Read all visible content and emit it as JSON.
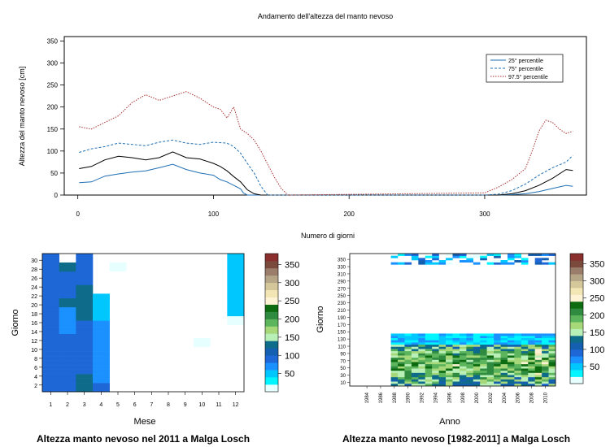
{
  "colors": {
    "p25": "#1f6fb4",
    "p75": "#1f6fb4",
    "p975": "#a83232",
    "median": "#000000",
    "heat_scale": [
      "#e6ffff",
      "#00f5ff",
      "#00c8ff",
      "#1b90ff",
      "#1e67d6",
      "#145fb0",
      "#0e6c8a",
      "#b8f0b8",
      "#a6d87a",
      "#5cb45c",
      "#2e8b3f",
      "#0d6b10",
      "#fff3d6",
      "#f2e6b5",
      "#d4c79a",
      "#b5a688",
      "#9b7d6b",
      "#7a4a3c",
      "#8b2e2e"
    ]
  },
  "top_chart": {
    "title": "Andamento dell'altezza del manto nevoso",
    "ylabel": "Altezza del manto nevoso [cm]",
    "xlabel": "Numero di giorni",
    "x_ticks": [
      "0",
      "100",
      "200",
      "300"
    ],
    "y_ticks": [
      "0",
      "50",
      "100",
      "150",
      "200",
      "250",
      "300",
      "350"
    ],
    "legend": [
      "25° percentile",
      "75° percentile",
      "97.5° percentile"
    ]
  },
  "chart_data": [
    {
      "type": "line",
      "title": "Andamento dell'altezza del manto nevoso",
      "xlabel": "Numero di giorni",
      "ylabel": "Altezza del manto nevoso [cm]",
      "xlim": [
        -10,
        375
      ],
      "ylim": [
        0,
        360
      ],
      "legend_position": "top-right",
      "series": [
        {
          "name": "25° percentile",
          "style": "solid",
          "color": "#1f6fb4",
          "x": [
            1,
            10,
            20,
            30,
            40,
            50,
            60,
            70,
            80,
            90,
            100,
            105,
            110,
            115,
            120,
            122,
            125,
            130,
            300,
            310,
            320,
            330,
            340,
            350,
            360,
            365
          ],
          "y": [
            28,
            30,
            43,
            48,
            52,
            55,
            62,
            70,
            58,
            50,
            45,
            35,
            30,
            22,
            14,
            5,
            0,
            0,
            0,
            0,
            1,
            3,
            8,
            15,
            22,
            20
          ]
        },
        {
          "name": "",
          "style": "solid",
          "color": "#000000",
          "x": [
            1,
            10,
            20,
            30,
            40,
            50,
            60,
            70,
            80,
            90,
            100,
            105,
            110,
            115,
            120,
            125,
            130,
            135,
            300,
            310,
            320,
            330,
            340,
            350,
            360,
            365
          ],
          "y": [
            60,
            65,
            80,
            88,
            85,
            80,
            85,
            98,
            85,
            82,
            72,
            65,
            55,
            42,
            30,
            12,
            3,
            0,
            0,
            0,
            3,
            10,
            22,
            38,
            58,
            56
          ]
        },
        {
          "name": "75° percentile",
          "style": "dashed",
          "color": "#1f6fb4",
          "x": [
            1,
            10,
            20,
            30,
            40,
            50,
            60,
            70,
            80,
            90,
            100,
            110,
            115,
            120,
            125,
            130,
            135,
            140,
            300,
            310,
            320,
            330,
            340,
            350,
            360,
            365
          ],
          "y": [
            97,
            105,
            110,
            118,
            115,
            112,
            120,
            125,
            118,
            115,
            120,
            118,
            110,
            95,
            72,
            50,
            20,
            0,
            0,
            2,
            10,
            25,
            45,
            62,
            75,
            90
          ]
        },
        {
          "name": "97.5° percentile",
          "style": "dotted",
          "color": "#a83232",
          "x": [
            1,
            10,
            20,
            30,
            40,
            50,
            60,
            70,
            80,
            90,
            100,
            105,
            110,
            115,
            120,
            125,
            130,
            135,
            140,
            145,
            150,
            155,
            300,
            310,
            320,
            330,
            335,
            340,
            345,
            350,
            355,
            360,
            365
          ],
          "y": [
            155,
            150,
            165,
            180,
            210,
            228,
            215,
            225,
            235,
            220,
            200,
            195,
            175,
            200,
            150,
            140,
            125,
            100,
            70,
            40,
            15,
            0,
            5,
            18,
            35,
            60,
            100,
            145,
            170,
            165,
            150,
            140,
            145
          ]
        }
      ]
    },
    {
      "type": "heatmap",
      "title": "Altezza manto nevoso nel 2011 a Malga Losch",
      "xlabel": "Mese",
      "ylabel": "Giorno",
      "x_ticks": [
        "1",
        "2",
        "3",
        "4",
        "5",
        "6",
        "7",
        "8",
        "9",
        "10",
        "11",
        "12"
      ],
      "y_ticks": [
        "2",
        "4",
        "6",
        "8",
        "10",
        "12",
        "14",
        "16",
        "18",
        "20",
        "22",
        "24",
        "26",
        "28",
        "30"
      ],
      "colorbar_ticks": [
        "50",
        "100",
        "150",
        "200",
        "250",
        "300",
        "350"
      ],
      "colorbar_range": [
        0,
        380
      ],
      "columns": [
        {
          "month": 1,
          "values": [
            95,
            95,
            95,
            95,
            80,
            80,
            80,
            80,
            95,
            95,
            95,
            95,
            95,
            95,
            95,
            95,
            95,
            95,
            95,
            95,
            95,
            95,
            95,
            95,
            95,
            95,
            95,
            95,
            95,
            95,
            95
          ]
        },
        {
          "month": 2,
          "values": [
            95,
            95,
            95,
            95,
            95,
            95,
            95,
            95,
            95,
            95,
            95,
            95,
            95,
            75,
            75,
            75,
            75,
            75,
            75,
            130,
            130,
            95,
            95,
            95,
            95,
            95,
            95,
            130,
            130
          ]
        },
        {
          "month": 3,
          "values": [
            130,
            130,
            130,
            130,
            95,
            95,
            95,
            95,
            95,
            95,
            95,
            95,
            95,
            95,
            95,
            95,
            130,
            130,
            130,
            130,
            130,
            130,
            130,
            130,
            95,
            95,
            95,
            95,
            95,
            95,
            95
          ]
        },
        {
          "month": 4,
          "values": [
            95,
            95,
            60,
            60,
            60,
            60,
            60,
            60,
            60,
            60,
            60,
            60,
            60,
            60,
            60,
            60,
            40,
            40,
            40,
            40,
            40,
            40,
            0,
            0,
            0,
            0,
            0,
            0,
            0,
            0
          ]
        },
        {
          "month": 5,
          "values": [
            0,
            0,
            0,
            0,
            0,
            0,
            0,
            0,
            0,
            0,
            0,
            0,
            0,
            0,
            0,
            0,
            0,
            0,
            0,
            0,
            0,
            0,
            0,
            0,
            0,
            0,
            0,
            0,
            0,
            0,
            0
          ]
        },
        {
          "month": 10,
          "values": [
            0,
            0,
            0,
            0,
            0,
            0,
            0,
            0,
            0,
            0,
            0,
            0,
            0,
            0,
            0,
            0,
            0,
            0,
            0,
            0,
            0,
            0,
            0,
            0,
            0,
            0,
            0,
            0,
            0,
            0,
            0
          ]
        },
        {
          "month": 12,
          "values": [
            0,
            0,
            0,
            0,
            0,
            0,
            0,
            0,
            0,
            0,
            0,
            0,
            0,
            0,
            0,
            0,
            0,
            40,
            40,
            40,
            40,
            40,
            40,
            40,
            40,
            40,
            40,
            40,
            40,
            40,
            40
          ]
        }
      ]
    },
    {
      "type": "heatmap",
      "title": "Altezza manto nevoso [1982-2011] a Malga Losch",
      "xlabel": "Anno",
      "ylabel": "Giorno",
      "x_ticks": [
        "1984",
        "1986",
        "1988",
        "1990",
        "1992",
        "1994",
        "1996",
        "1998",
        "2000",
        "2002",
        "2004",
        "2006",
        "2008",
        "2010"
      ],
      "y_ticks": [
        "10",
        "30",
        "50",
        "70",
        "90",
        "110",
        "130",
        "150",
        "170",
        "190",
        "210",
        "230",
        "250",
        "270",
        "290",
        "310",
        "330",
        "350"
      ],
      "colorbar_ticks": [
        "50",
        "100",
        "150",
        "200",
        "250",
        "300",
        "350"
      ],
      "colorbar_range": [
        0,
        380
      ],
      "year_range": [
        1988,
        2011
      ],
      "winter_days": [
        1,
        140
      ],
      "autumn_days": [
        320,
        365
      ]
    }
  ],
  "bottom_left": {
    "ylabel": "Giorno",
    "xlabel": "Mese",
    "caption": "Altezza manto nevoso nel 2011 a Malga Losch"
  },
  "bottom_right": {
    "ylabel": "Giorno",
    "xlabel": "Anno",
    "caption": "Altezza manto nevoso [1982-2011] a Malga Losch"
  }
}
